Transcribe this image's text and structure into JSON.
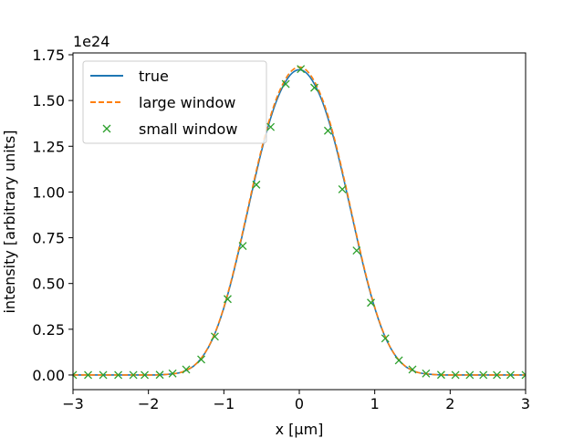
{
  "chart_data": {
    "type": "line",
    "title": "",
    "xlabel": "x [μm]",
    "ylabel": "intensity [arbitrary units]",
    "offset_text": "1e24",
    "xlim": [
      -3,
      3
    ],
    "ylim": [
      -0.08,
      1.76
    ],
    "x_ticks": [
      -3,
      -2,
      -1,
      0,
      1,
      2,
      3
    ],
    "x_tick_labels": [
      "−3",
      "−2",
      "−1",
      "0",
      "1",
      "2",
      "3"
    ],
    "y_ticks": [
      0,
      0.25,
      0.5,
      0.75,
      1.0,
      1.25,
      1.5,
      1.75
    ],
    "y_tick_labels": [
      "0.00",
      "0.25",
      "0.50",
      "0.75",
      "1.00",
      "1.25",
      "1.50",
      "1.75"
    ],
    "grid": false,
    "legend_position": "top-left",
    "series": [
      {
        "name": "true",
        "style": "solid-line",
        "color": "#1f77b4",
        "x": [
          -3.0,
          -2.5,
          -2.0,
          -1.8,
          -1.6,
          -1.5,
          -1.4,
          -1.3,
          -1.2,
          -1.1,
          -1.0,
          -0.9,
          -0.8,
          -0.7,
          -0.6,
          -0.5,
          -0.4,
          -0.3,
          -0.2,
          -0.1,
          0.0,
          0.1,
          0.2,
          0.3,
          0.4,
          0.5,
          0.6,
          0.7,
          0.8,
          0.9,
          1.0,
          1.1,
          1.2,
          1.3,
          1.4,
          1.5,
          1.6,
          1.8,
          2.0,
          2.5,
          3.0
        ],
        "y": [
          0.0,
          0.0,
          0.0,
          0.002,
          0.011,
          0.025,
          0.049,
          0.091,
          0.155,
          0.246,
          0.367,
          0.514,
          0.684,
          0.867,
          1.051,
          1.225,
          1.376,
          1.5,
          1.59,
          1.648,
          1.668,
          1.648,
          1.59,
          1.5,
          1.376,
          1.225,
          1.051,
          0.867,
          0.684,
          0.514,
          0.367,
          0.246,
          0.155,
          0.091,
          0.049,
          0.025,
          0.011,
          0.002,
          0.0,
          0.0,
          0.0
        ]
      },
      {
        "name": "large window",
        "style": "dashed-line",
        "color": "#ff7f0e",
        "x": [
          -3.0,
          -2.5,
          -2.0,
          -1.8,
          -1.6,
          -1.5,
          -1.4,
          -1.3,
          -1.2,
          -1.1,
          -1.0,
          -0.9,
          -0.8,
          -0.7,
          -0.6,
          -0.5,
          -0.4,
          -0.3,
          -0.2,
          -0.1,
          0.0,
          0.1,
          0.2,
          0.3,
          0.4,
          0.5,
          0.6,
          0.7,
          0.8,
          0.9,
          1.0,
          1.1,
          1.2,
          1.3,
          1.4,
          1.5,
          1.6,
          1.8,
          2.0,
          2.5,
          3.0
        ],
        "y": [
          0.0,
          0.0,
          0.0,
          0.002,
          0.011,
          0.026,
          0.05,
          0.092,
          0.157,
          0.249,
          0.371,
          0.52,
          0.692,
          0.876,
          1.062,
          1.237,
          1.39,
          1.514,
          1.605,
          1.663,
          1.683,
          1.663,
          1.605,
          1.514,
          1.39,
          1.237,
          1.062,
          0.876,
          0.692,
          0.52,
          0.371,
          0.249,
          0.157,
          0.092,
          0.05,
          0.026,
          0.011,
          0.002,
          0.0,
          0.0,
          0.0
        ]
      },
      {
        "name": "small window",
        "style": "x-markers",
        "color": "#2ca02c",
        "x": [
          -3.0,
          -2.8,
          -2.6,
          -2.4,
          -2.2,
          -2.05,
          -1.85,
          -1.68,
          -1.5,
          -1.3,
          -1.12,
          -0.95,
          -0.75,
          -0.57,
          -0.38,
          -0.18,
          0.02,
          0.2,
          0.38,
          0.57,
          0.76,
          0.95,
          1.14,
          1.32,
          1.5,
          1.68,
          1.88,
          2.07,
          2.26,
          2.44,
          2.62,
          2.8,
          3.0
        ],
        "y": [
          0.0,
          0.0,
          0.0,
          0.0,
          0.0,
          0.0,
          0.001,
          0.008,
          0.03,
          0.085,
          0.21,
          0.415,
          0.705,
          1.04,
          1.355,
          1.59,
          1.672,
          1.57,
          1.335,
          1.015,
          0.68,
          0.395,
          0.2,
          0.08,
          0.03,
          0.008,
          0.001,
          0.0,
          0.0,
          0.0,
          0.0,
          0.0,
          0.0
        ]
      }
    ]
  }
}
